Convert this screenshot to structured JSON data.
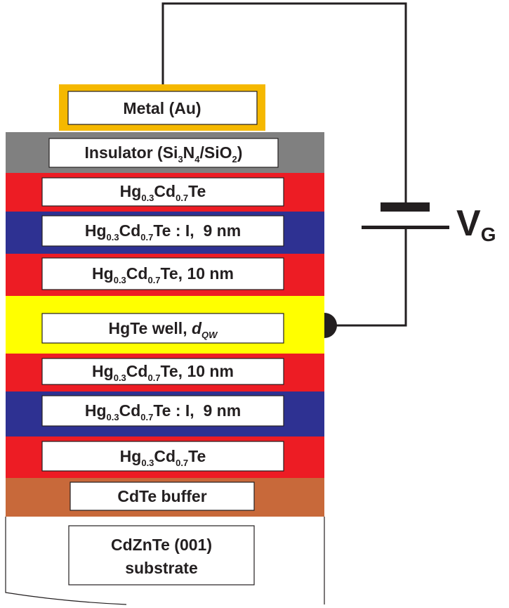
{
  "metal": "Metal (Au)",
  "layers": [
    {
      "parts": [
        "Insulator (Si",
        "3",
        "N",
        "4",
        "/SiO",
        "2",
        ")"
      ]
    },
    {
      "parts": [
        "Hg",
        "0.3",
        "Cd",
        "0.7",
        "Te"
      ]
    },
    {
      "parts": [
        "Hg",
        "0.3",
        "Cd",
        "0.7",
        "Te : I,  9 nm"
      ]
    },
    {
      "parts": [
        "Hg",
        "0.3",
        "Cd",
        "0.7",
        "Te, 10 nm"
      ]
    },
    {
      "parts": [
        "HgTe well, ",
        "d",
        "QW"
      ]
    },
    {
      "parts": [
        "Hg",
        "0.3",
        "Cd",
        "0.7",
        "Te, 10 nm"
      ]
    },
    {
      "parts": [
        "Hg",
        "0.3",
        "Cd",
        "0.7",
        "Te : I,  9 nm"
      ]
    },
    {
      "parts": [
        "Hg",
        "0.3",
        "Cd",
        "0.7",
        "Te"
      ]
    },
    {
      "parts": [
        "CdTe buffer"
      ]
    },
    {
      "parts": [
        "CdZnTe (001)",
        "substrate"
      ]
    }
  ],
  "voltage": [
    "V",
    "G"
  ]
}
